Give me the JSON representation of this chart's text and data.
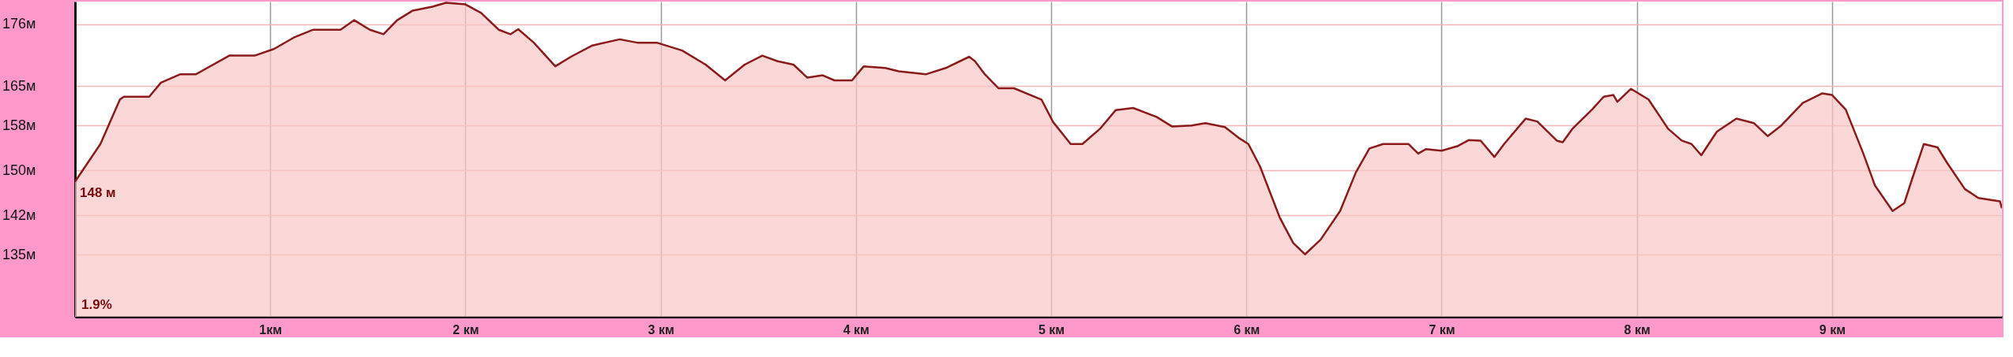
{
  "chart_data": {
    "type": "area",
    "x": [
      0,
      0.13,
      0.23,
      0.25,
      0.38,
      0.44,
      0.54,
      0.62,
      0.79,
      0.92,
      1.02,
      1.12,
      1.22,
      1.36,
      1.43,
      1.51,
      1.58,
      1.65,
      1.73,
      1.83,
      1.9,
      2.0,
      2.08,
      2.17,
      2.23,
      2.27,
      2.35,
      2.46,
      2.54,
      2.65,
      2.79,
      2.88,
      2.98,
      3.11,
      3.23,
      3.33,
      3.43,
      3.52,
      3.6,
      3.68,
      3.75,
      3.83,
      3.89,
      3.98,
      4.04,
      4.15,
      4.22,
      4.36,
      4.46,
      4.58,
      4.61,
      4.66,
      4.73,
      4.81,
      4.95,
      5.01,
      5.1,
      5.16,
      5.25,
      5.33,
      5.42,
      5.54,
      5.62,
      5.72,
      5.79,
      5.89,
      5.96,
      6.01,
      6.07,
      6.17,
      6.24,
      6.3,
      6.38,
      6.48,
      6.56,
      6.63,
      6.7,
      6.83,
      6.88,
      6.92,
      7.0,
      7.08,
      7.14,
      7.2,
      7.27,
      7.32,
      7.43,
      7.49,
      7.59,
      7.62,
      7.67,
      7.77,
      7.83,
      7.88,
      7.9,
      7.97,
      8.06,
      8.16,
      8.23,
      8.28,
      8.33,
      8.41,
      8.51,
      8.6,
      8.67,
      8.74,
      8.85,
      8.95,
      9.0,
      9.07,
      9.16,
      9.22,
      9.31,
      9.37,
      9.41,
      9.47,
      9.54,
      9.59,
      9.68,
      9.75,
      9.86,
      9.87
    ],
    "series": [
      {
        "color": "#8b1a1a",
        "values": [
          148,
          154.7,
          162.6,
          163.1,
          163.1,
          165.6,
          167.1,
          167.1,
          170.4,
          170.4,
          171.6,
          173.6,
          175.0,
          175.0,
          176.7,
          175.0,
          174.2,
          176.7,
          178.4,
          179.1,
          179.8,
          179.5,
          178.0,
          175.0,
          174.2,
          175.1,
          172.7,
          168.5,
          170.2,
          172.2,
          173.3,
          172.7,
          172.7,
          171.3,
          168.8,
          166.0,
          168.8,
          170.4,
          169.4,
          168.8,
          166.5,
          166.9,
          166.0,
          166.0,
          168.5,
          168.2,
          167.6,
          167.1,
          168.2,
          170.2,
          169.4,
          167.1,
          164.6,
          164.6,
          162.6,
          158.6,
          154.7,
          154.7,
          157.4,
          160.7,
          161.1,
          159.5,
          157.8,
          158.0,
          158.4,
          157.7,
          155.8,
          154.7,
          150.7,
          141.7,
          137.1,
          135.1,
          137.7,
          142.8,
          149.6,
          153.9,
          154.7,
          154.7,
          153.0,
          153.8,
          153.5,
          154.3,
          155.4,
          155.3,
          152.4,
          154.7,
          159.2,
          158.7,
          155.3,
          155.0,
          157.4,
          160.8,
          163.1,
          163.4,
          162.2,
          164.5,
          162.6,
          157.4,
          155.3,
          154.7,
          152.7,
          156.9,
          159.2,
          158.4,
          156.1,
          158.0,
          162.0,
          163.7,
          163.4,
          160.8,
          153.0,
          147.3,
          142.8,
          144.2,
          148.5,
          154.7,
          154.1,
          151.3,
          146.7,
          145.1,
          144.5,
          143.3
        ]
      }
    ],
    "xlim": [
      0,
      9.87
    ],
    "xticks": [
      {
        "value": 1,
        "label": "1км"
      },
      {
        "value": 2,
        "label": "2 км"
      },
      {
        "value": 3,
        "label": "3 км"
      },
      {
        "value": 4,
        "label": "4 км"
      },
      {
        "value": 5,
        "label": "5 км"
      },
      {
        "value": 6,
        "label": "6 км"
      },
      {
        "value": 7,
        "label": "7 км"
      },
      {
        "value": 8,
        "label": "8 км"
      },
      {
        "value": 9,
        "label": "9 км"
      }
    ],
    "ylim": [
      124,
      180
    ],
    "yticks": [
      {
        "value": 135,
        "label": "135м"
      },
      {
        "value": 142,
        "label": "142м"
      },
      {
        "value": 150,
        "label": "150м"
      },
      {
        "value": 158,
        "label": "158м"
      },
      {
        "value": 165,
        "label": "165м"
      },
      {
        "value": 176,
        "label": "176м"
      }
    ],
    "grid": true,
    "annotations": [
      {
        "text": "148 м",
        "x": 0,
        "y": 148
      },
      "1.9%"
    ]
  }
}
